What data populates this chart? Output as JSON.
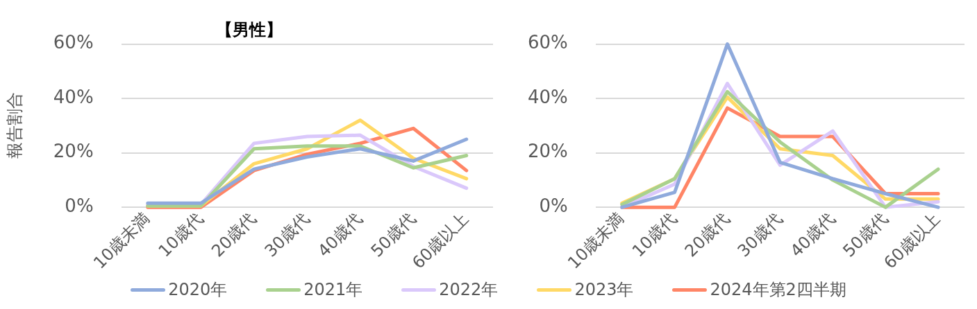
{
  "chart_data": [
    {
      "type": "line",
      "title": "【男性】",
      "ylabel": "報告割合",
      "categories": [
        "10歳未満",
        "10歳代",
        "20歳代",
        "30歳代",
        "40歳代",
        "50歳代",
        "60歳以上"
      ],
      "series": [
        {
          "name": "2020年",
          "color": "#8faadc",
          "values": [
            1.5,
            1.5,
            14,
            18.5,
            21.5,
            17,
            25
          ]
        },
        {
          "name": "2021年",
          "color": "#a9d18e",
          "values": [
            0.5,
            0.5,
            21.5,
            22.5,
            22.5,
            14.5,
            19
          ]
        },
        {
          "name": "2022年",
          "color": "#dac8fb",
          "values": [
            1,
            1,
            23.5,
            26,
            26.5,
            15,
            7
          ]
        },
        {
          "name": "2023年",
          "color": "#ffd966",
          "values": [
            0.5,
            0.5,
            16,
            21.5,
            32,
            18,
            10.5
          ]
        },
        {
          "name": "2024年第2四半期",
          "color": "#ff8566",
          "values": [
            0,
            0,
            13.5,
            19.5,
            23.5,
            29,
            13.5
          ]
        }
      ],
      "ylim": [
        0,
        60
      ],
      "yticks": [
        {
          "value": 0,
          "label": "0%"
        },
        {
          "value": 20,
          "label": "20%"
        },
        {
          "value": 40,
          "label": "40%"
        },
        {
          "value": 60,
          "label": "60%"
        }
      ],
      "grid": "y",
      "legend": "bottom",
      "marker": "none",
      "line_style": "solid"
    },
    {
      "type": "line",
      "categories": [
        "10歳未満",
        "10歳代",
        "20歳代",
        "30歳代",
        "40歳代",
        "50歳代",
        "60歳以上"
      ],
      "series": [
        {
          "color": "#8faadc",
          "values": [
            0,
            5.5,
            60,
            16.5,
            10.5,
            5,
            0
          ]
        },
        {
          "color": "#a9d18e",
          "values": [
            1,
            10.5,
            42.5,
            24,
            10,
            0,
            14
          ]
        },
        {
          "color": "#dac8fb",
          "values": [
            0,
            8.5,
            45.5,
            15.5,
            28,
            0,
            2
          ]
        },
        {
          "color": "#ffd966",
          "values": [
            1.5,
            10.5,
            40.5,
            21.5,
            19,
            3,
            3
          ]
        },
        {
          "color": "#ff8566",
          "values": [
            0,
            0,
            36.5,
            26,
            26,
            5,
            5
          ]
        }
      ],
      "ylim": [
        0,
        60
      ],
      "yticks": [
        {
          "value": 0,
          "label": "0%"
        },
        {
          "value": 20,
          "label": "20%"
        },
        {
          "value": 40,
          "label": "40%"
        },
        {
          "value": 60,
          "label": "60%"
        }
      ],
      "grid": "y",
      "marker": "none",
      "line_style": "solid"
    }
  ]
}
